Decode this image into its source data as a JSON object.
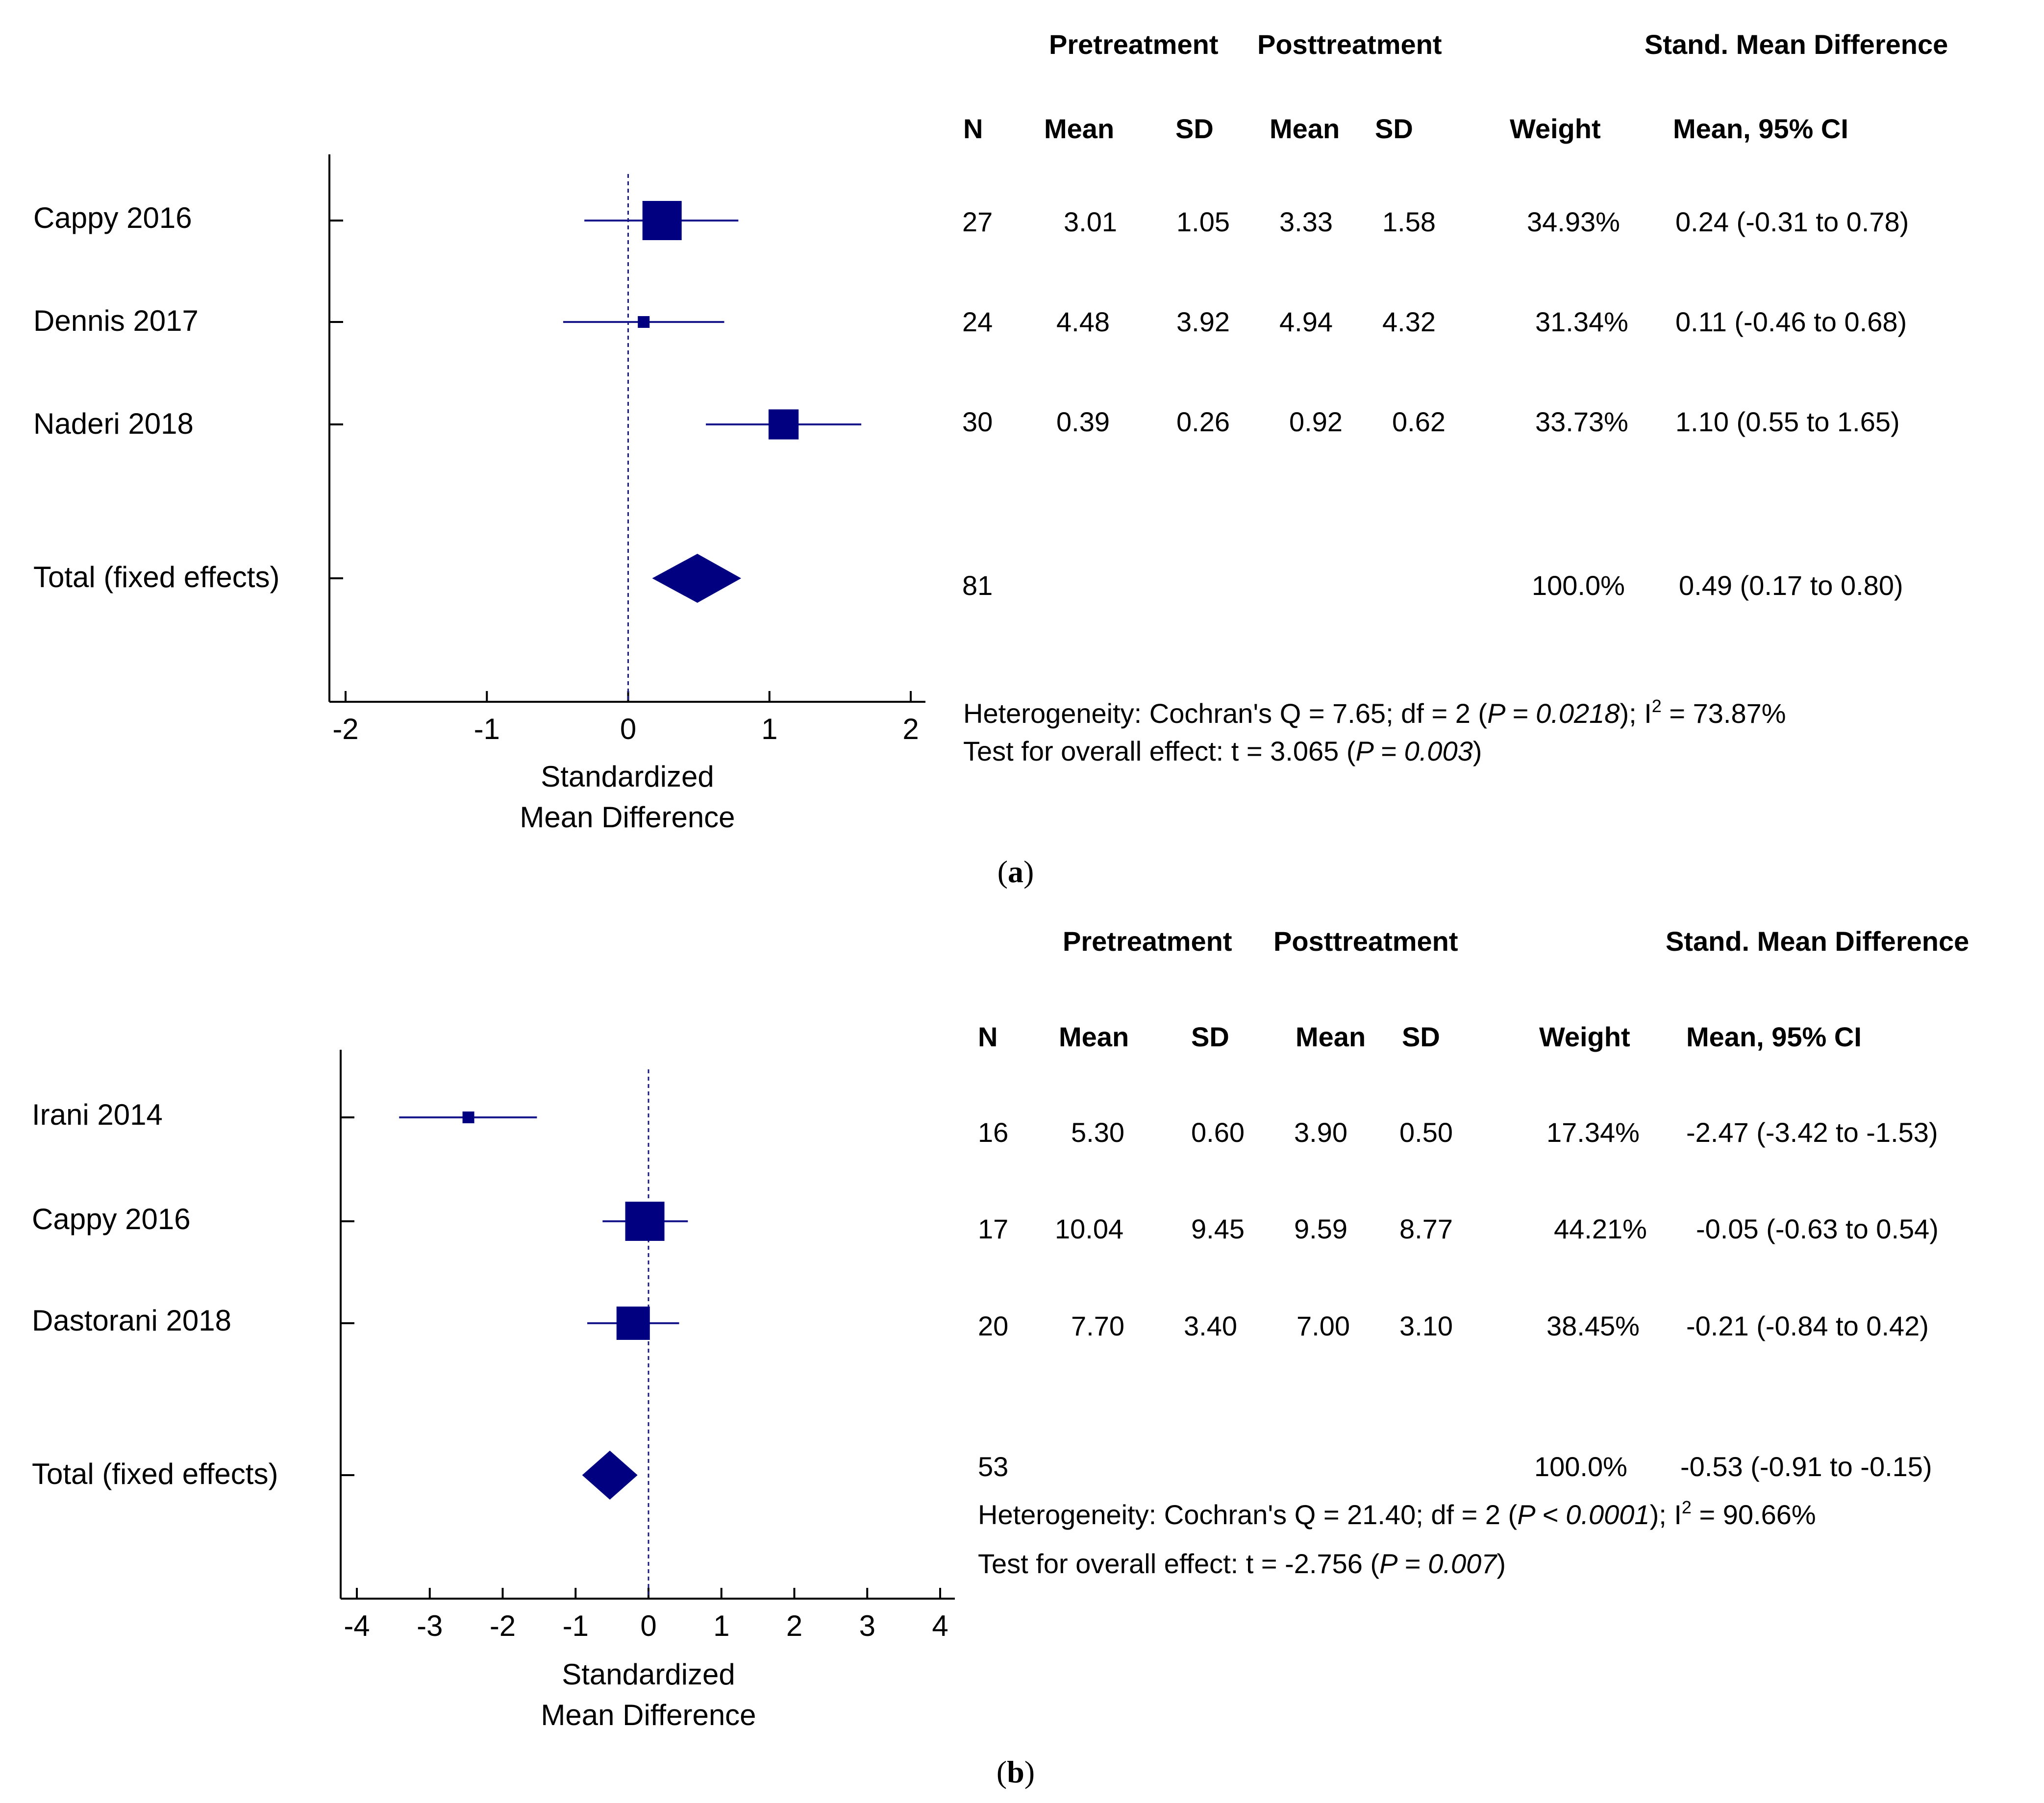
{
  "panels": [
    {
      "caption": "a",
      "header": {
        "group1": "Pretreatment",
        "group2": "Posttreatment",
        "effect": "Stand. Mean Difference",
        "cols": [
          "N",
          "Mean",
          "SD",
          "Mean",
          "SD",
          "Weight",
          "Mean, 95% CI"
        ]
      },
      "axis_label": [
        "Standardized",
        "Mean Difference"
      ],
      "rows": [
        {
          "label": "Cappy 2016",
          "cells": [
            "27",
            "3.01",
            "1.05",
            "3.33",
            "1.58",
            "34.93%",
            "0.24 (-0.31 to 0.78)"
          ]
        },
        {
          "label": "Dennis 2017",
          "cells": [
            "24",
            "4.48",
            "3.92",
            "4.94",
            "4.32",
            "31.34%",
            "0.11 (-0.46 to 0.68)"
          ]
        },
        {
          "label": "Naderi 2018",
          "cells": [
            "30",
            "0.39",
            "0.26",
            "0.92",
            "0.62",
            "33.73%",
            "1.10 (0.55 to 1.65)"
          ]
        }
      ],
      "total": {
        "label": "Total (fixed effects)",
        "n": "81",
        "weight": "100.0%",
        "ci": "0.49 (0.17 to 0.80)"
      },
      "heterogeneity": {
        "prefix": "Heterogeneity: Cochran's Q = 7.65; df = 2 (",
        "p": "P = 0.0218",
        "suffix": "); I",
        "sup": "2",
        "tail": " = 73.87%"
      },
      "overall": {
        "prefix": "Test for overall effect: t = 3.065 (",
        "p": "P = 0.003",
        "suffix": ")"
      }
    },
    {
      "caption": "b",
      "header": {
        "group1": "Pretreatment",
        "group2": "Posttreatment",
        "effect": "Stand. Mean Difference",
        "cols": [
          "N",
          "Mean",
          "SD",
          "Mean",
          "SD",
          "Weight",
          "Mean, 95% CI"
        ]
      },
      "axis_label": [
        "Standardized",
        "Mean Difference"
      ],
      "rows": [
        {
          "label": "Irani 2014",
          "cells": [
            "16",
            "5.30",
            "0.60",
            "3.90",
            "0.50",
            "17.34%",
            "-2.47 (-3.42 to -1.53)"
          ]
        },
        {
          "label": "Cappy 2016",
          "cells": [
            "17",
            "10.04",
            "9.45",
            "9.59",
            "8.77",
            "44.21%",
            "-0.05 (-0.63 to 0.54)"
          ]
        },
        {
          "label": "Dastorani 2018",
          "cells": [
            "20",
            "7.70",
            "3.40",
            "7.00",
            "3.10",
            "38.45%",
            "-0.21 (-0.84 to 0.42)"
          ]
        }
      ],
      "total": {
        "label": "Total (fixed effects)",
        "n": "53",
        "weight": "100.0%",
        "ci": "-0.53 (-0.91 to -0.15)"
      },
      "heterogeneity": {
        "prefix": "Heterogeneity: Cochran's Q = 21.40; df = 2 (",
        "p": "P < 0.0001",
        "suffix": "); I",
        "sup": "2",
        "tail": " = 90.66%"
      },
      "overall": {
        "prefix": "Test for overall effect: t = -2.756 (",
        "p": "P = 0.007",
        "suffix": ")"
      }
    }
  ],
  "colors": {
    "marker": "#000080",
    "ci_line": "#1a1a8c",
    "reference": "#1a1a80",
    "axis": "#000000"
  },
  "chart_data": [
    {
      "type": "forest",
      "title": "(a)",
      "xlabel": "Standardized Mean Difference",
      "xlim": [
        -2,
        2
      ],
      "xticks": [
        -2,
        -1,
        0,
        1,
        2
      ],
      "reference_line": 0,
      "studies": [
        {
          "name": "Cappy 2016",
          "smd": 0.24,
          "lower": -0.31,
          "upper": 0.78,
          "weight": 34.93
        },
        {
          "name": "Dennis 2017",
          "smd": 0.11,
          "lower": -0.46,
          "upper": 0.68,
          "weight": 31.34
        },
        {
          "name": "Naderi 2018",
          "smd": 1.1,
          "lower": 0.55,
          "upper": 1.65,
          "weight": 33.73
        }
      ],
      "pooled": {
        "name": "Total (fixed effects)",
        "smd": 0.49,
        "lower": 0.17,
        "upper": 0.8,
        "weight": 100.0
      }
    },
    {
      "type": "forest",
      "title": "(b)",
      "xlabel": "Standardized Mean Difference",
      "xlim": [
        -4,
        4
      ],
      "xticks": [
        -4,
        -3,
        -2,
        -1,
        0,
        1,
        2,
        3,
        4
      ],
      "reference_line": 0,
      "studies": [
        {
          "name": "Irani 2014",
          "smd": -2.47,
          "lower": -3.42,
          "upper": -1.53,
          "weight": 17.34
        },
        {
          "name": "Cappy 2016",
          "smd": -0.05,
          "lower": -0.63,
          "upper": 0.54,
          "weight": 44.21
        },
        {
          "name": "Dastorani 2018",
          "smd": -0.21,
          "lower": -0.84,
          "upper": 0.42,
          "weight": 38.45
        }
      ],
      "pooled": {
        "name": "Total (fixed effects)",
        "smd": -0.53,
        "lower": -0.91,
        "upper": -0.15,
        "weight": 100.0
      }
    }
  ]
}
